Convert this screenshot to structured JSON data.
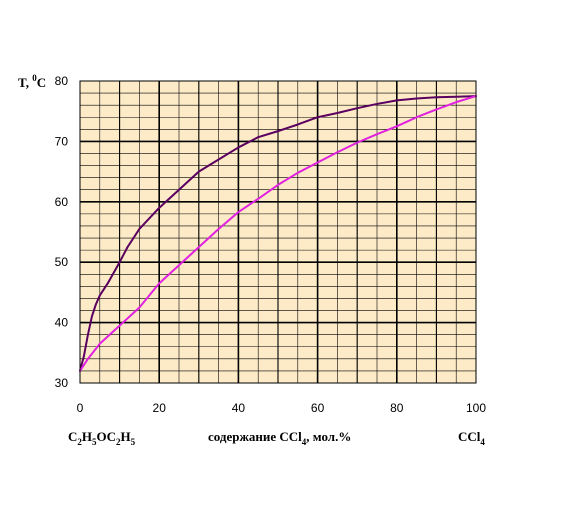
{
  "chart_data": {
    "type": "line",
    "title": "",
    "ylabel_parts": [
      "T, ",
      "0",
      "C"
    ],
    "xlabel_parts": [
      "содержание CCl",
      "4",
      ", мол.%"
    ],
    "left_component_parts": [
      "C",
      "2",
      "H",
      "5",
      "OC",
      "2",
      "H",
      "5"
    ],
    "right_component_parts": [
      "CCl",
      "4"
    ],
    "xlim": [
      0,
      100
    ],
    "ylim": [
      30,
      80
    ],
    "x_ticks": [
      "0",
      "20",
      "40",
      "60",
      "80",
      "100"
    ],
    "y_ticks": [
      "30",
      "40",
      "50",
      "60",
      "70",
      "80"
    ],
    "grid": true,
    "background_color": "#fdebc7",
    "series": [
      {
        "color": "#5a0060",
        "points": [
          [
            0,
            32
          ],
          [
            1,
            34.5
          ],
          [
            2,
            38
          ],
          [
            3,
            41
          ],
          [
            4,
            43
          ],
          [
            5,
            44.5
          ],
          [
            7,
            46.5
          ],
          [
            10,
            50
          ],
          [
            12,
            52.5
          ],
          [
            15,
            55.5
          ],
          [
            20,
            59
          ],
          [
            25,
            62
          ],
          [
            30,
            65
          ],
          [
            35,
            67
          ],
          [
            40,
            69
          ],
          [
            45,
            70.7
          ],
          [
            50,
            71.7
          ],
          [
            55,
            72.8
          ],
          [
            60,
            74
          ],
          [
            65,
            74.7
          ],
          [
            70,
            75.5
          ],
          [
            75,
            76.2
          ],
          [
            80,
            76.8
          ],
          [
            85,
            77.1
          ],
          [
            90,
            77.3
          ],
          [
            95,
            77.4
          ],
          [
            100,
            77.5
          ]
        ]
      },
      {
        "color": "#e021e0",
        "points": [
          [
            0,
            32
          ],
          [
            2,
            34
          ],
          [
            5,
            36.5
          ],
          [
            10,
            39.5
          ],
          [
            15,
            42.5
          ],
          [
            20,
            46.5
          ],
          [
            25,
            49.5
          ],
          [
            30,
            52.5
          ],
          [
            35,
            55.5
          ],
          [
            40,
            58.3
          ],
          [
            45,
            60.5
          ],
          [
            50,
            62.8
          ],
          [
            55,
            64.8
          ],
          [
            60,
            66.5
          ],
          [
            65,
            68.2
          ],
          [
            70,
            69.8
          ],
          [
            75,
            71.2
          ],
          [
            80,
            72.5
          ],
          [
            85,
            74
          ],
          [
            90,
            75.3
          ],
          [
            95,
            76.5
          ],
          [
            100,
            77.5
          ]
        ]
      }
    ]
  }
}
